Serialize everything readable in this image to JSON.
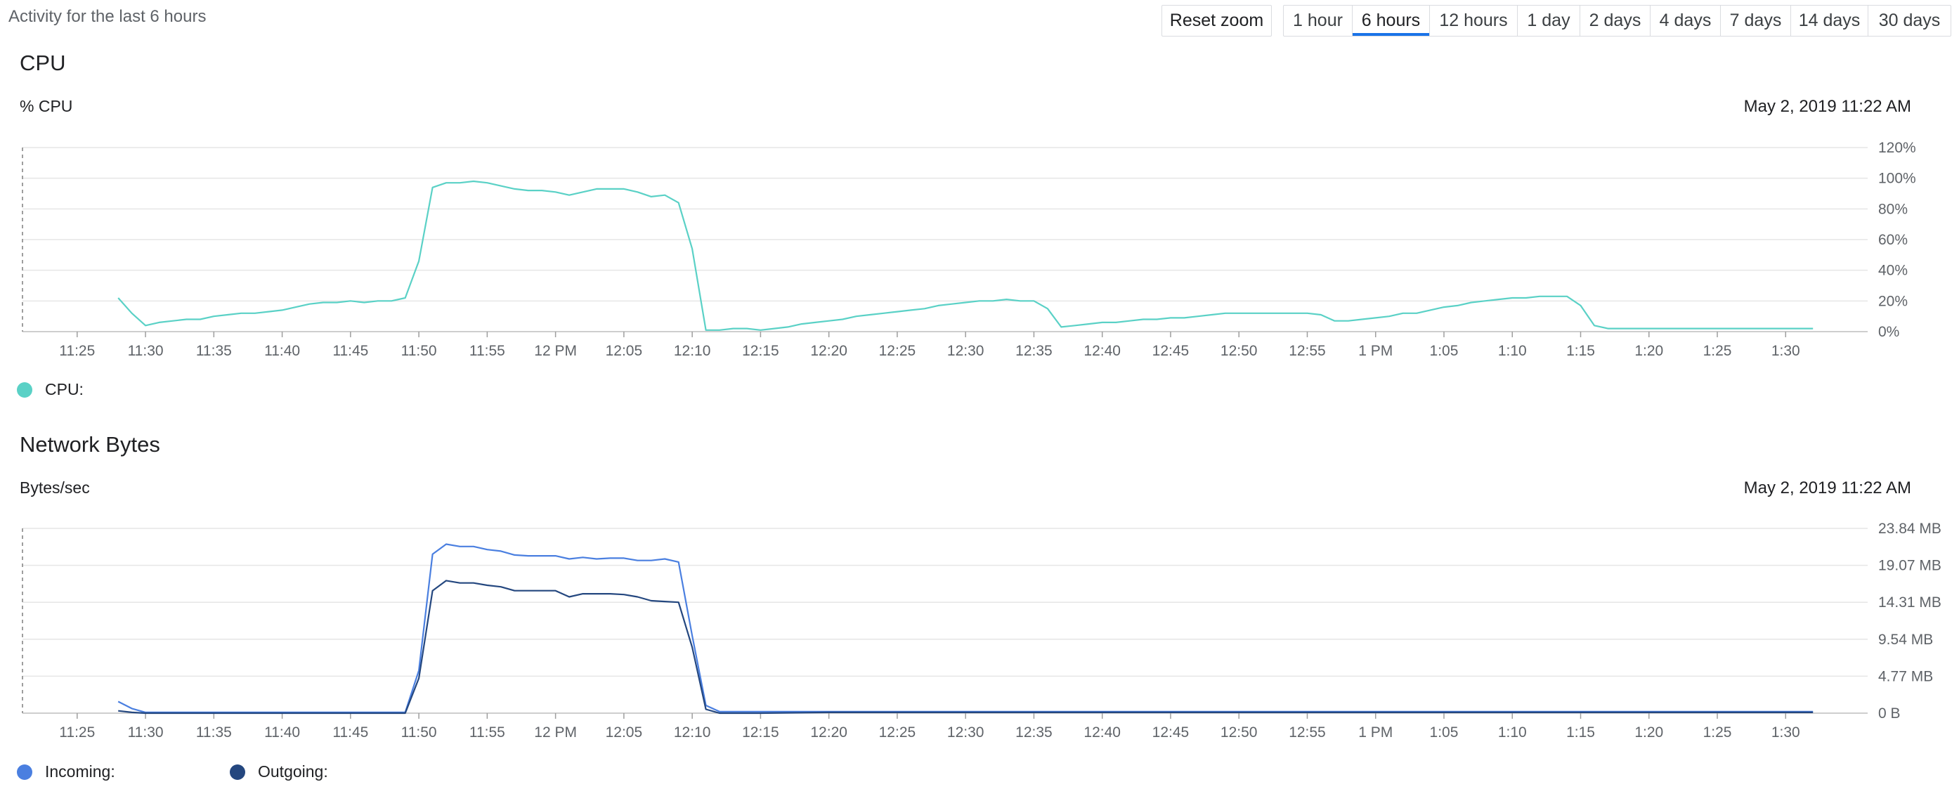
{
  "header": {
    "activity_label": "Activity for the last 6 hours",
    "reset_zoom": "Reset zoom",
    "ranges": [
      "1 hour",
      "6 hours",
      "12 hours",
      "1 day",
      "2 days",
      "4 days",
      "7 days",
      "14 days",
      "30 days"
    ],
    "active_range": "6 hours"
  },
  "cpu": {
    "title": "CPU",
    "unit": "% CPU",
    "timestamp": "May 2, 2019 11:22 AM",
    "legend": [
      "CPU:"
    ]
  },
  "network": {
    "title": "Network Bytes",
    "unit": "Bytes/sec",
    "timestamp": "May 2, 2019 11:22 AM",
    "legend": [
      "Incoming:",
      "Outgoing:"
    ]
  },
  "colors": {
    "cpu": "#5ad1c6",
    "incoming": "#4a7fe0",
    "outgoing": "#24477f",
    "active_tab": "#1a73e8"
  },
  "chart_data": [
    {
      "type": "line",
      "title": "CPU",
      "ylabel": "% CPU",
      "x_ticks": [
        "11:25",
        "11:30",
        "11:35",
        "11:40",
        "11:45",
        "11:50",
        "11:55",
        "12 PM",
        "12:05",
        "12:10",
        "12:15",
        "12:20",
        "12:25",
        "12:30",
        "12:35",
        "12:40",
        "12:45",
        "12:50",
        "12:55",
        "1 PM",
        "1:05",
        "1:10",
        "1:15",
        "1:20",
        "1:25",
        "1:30"
      ],
      "y_ticks": [
        "0%",
        "20%",
        "40%",
        "60%",
        "80%",
        "100%",
        "120%"
      ],
      "ylim": [
        0,
        120
      ],
      "grid": true,
      "legend_position": "bottom-left",
      "series": [
        {
          "name": "CPU",
          "x": [
            "11:28",
            "11:29",
            "11:30",
            "11:31",
            "11:32",
            "11:33",
            "11:34",
            "11:35",
            "11:36",
            "11:37",
            "11:38",
            "11:39",
            "11:40",
            "11:41",
            "11:42",
            "11:43",
            "11:44",
            "11:45",
            "11:46",
            "11:47",
            "11:48",
            "11:49",
            "11:50",
            "11:51",
            "11:52",
            "11:53",
            "11:54",
            "11:55",
            "11:56",
            "11:57",
            "11:58",
            "11:59",
            "12:00",
            "12:01",
            "12:02",
            "12:03",
            "12:04",
            "12:05",
            "12:06",
            "12:07",
            "12:08",
            "12:09",
            "12:10",
            "12:11",
            "12:12",
            "12:13",
            "12:14",
            "12:15",
            "12:16",
            "12:17",
            "12:18",
            "12:19",
            "12:20",
            "12:21",
            "12:22",
            "12:23",
            "12:24",
            "12:25",
            "12:26",
            "12:27",
            "12:28",
            "12:29",
            "12:30",
            "12:31",
            "12:32",
            "12:33",
            "12:34",
            "12:35",
            "12:36",
            "12:37",
            "12:38",
            "12:39",
            "12:40",
            "12:41",
            "12:42",
            "12:43",
            "12:44",
            "12:45",
            "12:46",
            "12:47",
            "12:48",
            "12:49",
            "12:50",
            "12:51",
            "12:52",
            "12:53",
            "12:54",
            "12:55",
            "12:56",
            "12:57",
            "12:58",
            "12:59",
            "13:00",
            "13:01",
            "13:02",
            "13:03",
            "13:04",
            "13:05",
            "13:06",
            "13:07",
            "13:08",
            "13:09",
            "13:10",
            "13:11",
            "13:12",
            "13:13",
            "13:14",
            "13:15",
            "13:16",
            "13:17",
            "13:18",
            "13:19",
            "13:20",
            "13:21",
            "13:22",
            "13:23",
            "13:24",
            "13:25",
            "13:26",
            "13:27",
            "13:28",
            "13:29",
            "13:30",
            "13:31",
            "13:32"
          ],
          "values": [
            22,
            12,
            4,
            6,
            7,
            8,
            8,
            10,
            11,
            12,
            12,
            13,
            14,
            16,
            18,
            19,
            19,
            20,
            19,
            20,
            20,
            22,
            46,
            94,
            97,
            97,
            98,
            97,
            95,
            93,
            92,
            92,
            91,
            89,
            91,
            93,
            93,
            93,
            91,
            88,
            89,
            84,
            54,
            1,
            1,
            2,
            2,
            1,
            2,
            3,
            5,
            6,
            7,
            8,
            10,
            11,
            12,
            13,
            14,
            15,
            17,
            18,
            19,
            20,
            20,
            21,
            20,
            20,
            15,
            3,
            4,
            5,
            6,
            6,
            7,
            8,
            8,
            9,
            9,
            10,
            11,
            12,
            12,
            12,
            12,
            12,
            12,
            12,
            11,
            7,
            7,
            8,
            9,
            10,
            12,
            12,
            14,
            16,
            17,
            19,
            20,
            21,
            22,
            22,
            23,
            23,
            23,
            17,
            4,
            2,
            2,
            2,
            2,
            2,
            2,
            2,
            2,
            2,
            2,
            2,
            2,
            2,
            2,
            2,
            2
          ]
        }
      ]
    },
    {
      "type": "line",
      "title": "Network Bytes",
      "ylabel": "Bytes/sec",
      "x_ticks": [
        "11:25",
        "11:30",
        "11:35",
        "11:40",
        "11:45",
        "11:50",
        "11:55",
        "12 PM",
        "12:05",
        "12:10",
        "12:15",
        "12:20",
        "12:25",
        "12:30",
        "12:35",
        "12:40",
        "12:45",
        "12:50",
        "12:55",
        "1 PM",
        "1:05",
        "1:10",
        "1:15",
        "1:20",
        "1:25",
        "1:30"
      ],
      "y_ticks": [
        "0 B",
        "4.77 MB",
        "9.54 MB",
        "14.31 MB",
        "19.07 MB",
        "23.84 MB"
      ],
      "ylim": [
        0,
        23.84
      ],
      "grid": true,
      "legend_position": "bottom-left",
      "series": [
        {
          "name": "Incoming",
          "x": [
            "11:28",
            "11:29",
            "11:30",
            "11:35",
            "11:40",
            "11:45",
            "11:49",
            "11:50",
            "11:51",
            "11:52",
            "11:53",
            "11:54",
            "11:55",
            "11:56",
            "11:57",
            "11:58",
            "11:59",
            "12:00",
            "12:01",
            "12:02",
            "12:03",
            "12:04",
            "12:05",
            "12:06",
            "12:07",
            "12:08",
            "12:09",
            "12:10",
            "12:11",
            "12:12",
            "12:15",
            "12:20",
            "12:30",
            "12:40",
            "12:50",
            "1:00",
            "1:10",
            "1:20",
            "1:30",
            "1:32"
          ],
          "values": [
            1.5,
            0.6,
            0.1,
            0.1,
            0.1,
            0.1,
            0.1,
            5.5,
            20.5,
            21.8,
            21.5,
            21.5,
            21.1,
            20.9,
            20.4,
            20.3,
            20.3,
            20.3,
            19.9,
            20.1,
            19.9,
            20.0,
            20.0,
            19.7,
            19.7,
            19.9,
            19.5,
            10.0,
            1.0,
            0.2,
            0.2,
            0.2,
            0.2,
            0.2,
            0.2,
            0.2,
            0.2,
            0.2,
            0.2,
            0.2
          ]
        },
        {
          "name": "Outgoing",
          "x": [
            "11:28",
            "11:29",
            "11:30",
            "11:35",
            "11:40",
            "11:45",
            "11:49",
            "11:50",
            "11:51",
            "11:52",
            "11:53",
            "11:54",
            "11:55",
            "11:56",
            "11:57",
            "11:58",
            "11:59",
            "12:00",
            "12:01",
            "12:02",
            "12:03",
            "12:04",
            "12:05",
            "12:06",
            "12:07",
            "12:08",
            "12:09",
            "12:10",
            "12:11",
            "12:12",
            "12:15",
            "12:20",
            "12:30",
            "12:40",
            "12:50",
            "1:00",
            "1:10",
            "1:20",
            "1:30",
            "1:32"
          ],
          "values": [
            0.3,
            0.1,
            0.0,
            0.0,
            0.0,
            0.0,
            0.0,
            4.5,
            15.8,
            17.1,
            16.8,
            16.8,
            16.5,
            16.3,
            15.8,
            15.8,
            15.8,
            15.8,
            15.0,
            15.4,
            15.4,
            15.4,
            15.3,
            15.0,
            14.5,
            14.4,
            14.3,
            8.5,
            0.5,
            0.0,
            0.0,
            0.1,
            0.1,
            0.1,
            0.1,
            0.1,
            0.1,
            0.1,
            0.1,
            0.1
          ]
        }
      ]
    }
  ]
}
